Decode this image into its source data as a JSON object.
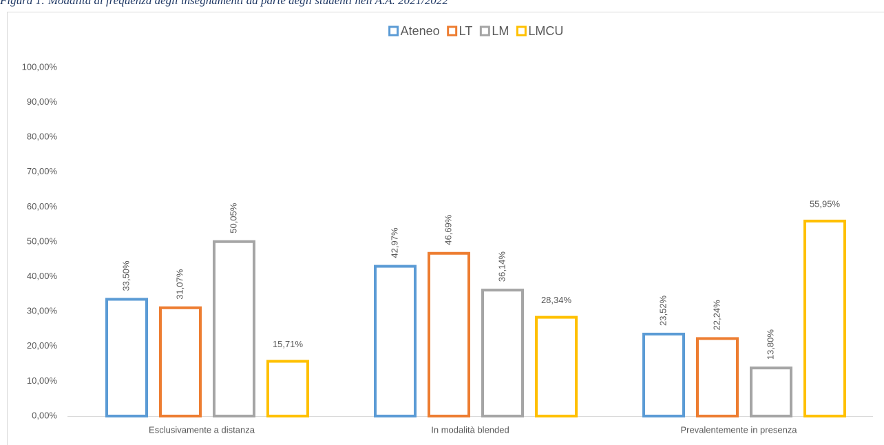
{
  "chart_data": {
    "type": "bar",
    "title": "Figura 1: Modalità di frequenza degli insegnamenti da parte degli studenti nell'A.A. 2021/2022",
    "categories": [
      "Esclusivamente a distanza",
      "In modalità blended",
      "Prevalentemente in presenza"
    ],
    "series": [
      {
        "name": "Ateneo",
        "color": "#5b9bd5",
        "values": [
          33.5,
          42.97,
          23.52
        ],
        "value_labels": [
          "33,50%",
          "42,97%",
          "23,52%"
        ]
      },
      {
        "name": "LT",
        "color": "#ed7d31",
        "values": [
          31.07,
          46.69,
          22.24
        ],
        "value_labels": [
          "31,07%",
          "46,69%",
          "22,24%"
        ]
      },
      {
        "name": "LM",
        "color": "#a5a5a5",
        "values": [
          50.05,
          36.14,
          13.8
        ],
        "value_labels": [
          "50,05%",
          "36,14%",
          "13,80%"
        ]
      },
      {
        "name": "LMCU",
        "color": "#ffc000",
        "values": [
          15.71,
          28.34,
          55.95
        ],
        "value_labels": [
          "15,71%",
          "28,34%",
          "55,95%"
        ]
      }
    ],
    "ylim": [
      0,
      100
    ],
    "yticks": [
      {
        "value": 0,
        "label": "0,00%"
      },
      {
        "value": 10,
        "label": "10,00%"
      },
      {
        "value": 20,
        "label": "20,00%"
      },
      {
        "value": 30,
        "label": "30,00%"
      },
      {
        "value": 40,
        "label": "40,00%"
      },
      {
        "value": 50,
        "label": "50,00%"
      },
      {
        "value": 60,
        "label": "60,00%"
      },
      {
        "value": 70,
        "label": "70,00%"
      },
      {
        "value": 80,
        "label": "80,00%"
      },
      {
        "value": 90,
        "label": "90,00%"
      },
      {
        "value": 100,
        "label": "100,00%"
      }
    ],
    "grid": false,
    "legend": "top"
  }
}
